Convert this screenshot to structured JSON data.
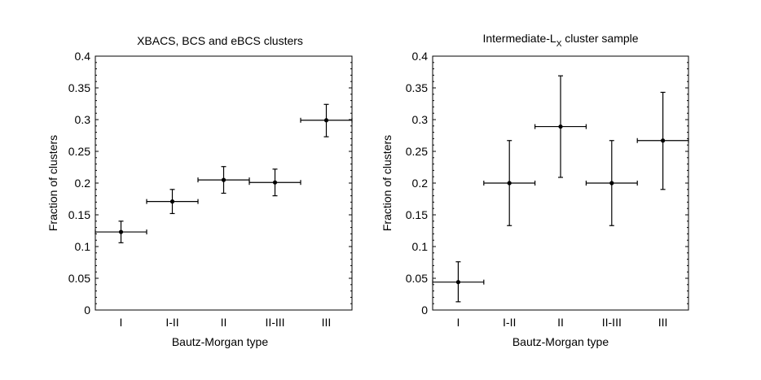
{
  "chart_data": [
    {
      "type": "scatter",
      "title": "XBACS, BCS and eBCS clusters",
      "xlabel": "Bautz-Morgan type",
      "ylabel": "Fraction of clusters",
      "categories": [
        "I",
        "I-II",
        "II",
        "II-III",
        "III"
      ],
      "values": [
        0.123,
        0.171,
        0.205,
        0.201,
        0.299
      ],
      "err_low": [
        0.017,
        0.019,
        0.021,
        0.021,
        0.026
      ],
      "err_high": [
        0.017,
        0.019,
        0.021,
        0.021,
        0.025
      ],
      "x_err": 0.5,
      "ylim": [
        0,
        0.4
      ],
      "yticks": [
        "0",
        "0.05",
        "0.1",
        "0.15",
        "0.2",
        "0.25",
        "0.3",
        "0.35",
        "0.4"
      ]
    },
    {
      "type": "scatter",
      "title_main": "Intermediate-L",
      "title_sub": "X",
      "title_end": " cluster sample",
      "xlabel": "Bautz-Morgan type",
      "ylabel": "Fraction of clusters",
      "categories": [
        "I",
        "I-II",
        "II",
        "II-III",
        "III"
      ],
      "values": [
        0.044,
        0.2,
        0.289,
        0.2,
        0.267
      ],
      "err_low": [
        0.031,
        0.067,
        0.08,
        0.067,
        0.077
      ],
      "err_high": [
        0.032,
        0.067,
        0.08,
        0.067,
        0.076
      ],
      "x_err": 0.5,
      "ylim": [
        0,
        0.4
      ],
      "yticks": [
        "0",
        "0.05",
        "0.1",
        "0.15",
        "0.2",
        "0.25",
        "0.3",
        "0.35",
        "0.4"
      ]
    }
  ]
}
